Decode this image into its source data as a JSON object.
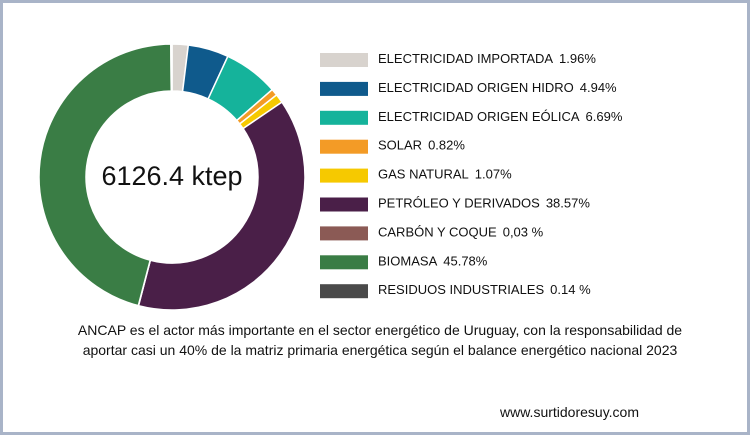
{
  "chart_data": {
    "type": "pie",
    "donut": true,
    "center_label": "6126.4 ktep",
    "categories": [
      "ELECTRICIDAD IMPORTADA",
      "ELECTRICIDAD ORIGEN HIDRO",
      "ELECTRICIDAD ORIGEN EÓLICA",
      "SOLAR",
      "GAS NATURAL",
      "PETRÓLEO Y DERIVADOS",
      "CARBÓN Y COQUE",
      "BIOMASA",
      "RESIDUOS INDUSTRIALES"
    ],
    "values": [
      1.96,
      4.94,
      6.69,
      0.82,
      1.07,
      38.57,
      0.03,
      45.78,
      0.14
    ],
    "value_labels": [
      "1.96%",
      "4.94%",
      "6.69%",
      "0.82%",
      "1.07%",
      "38.57%",
      "0,03 %",
      "45.78%",
      "0.14 %"
    ],
    "colors": [
      "#d8d3ce",
      "#0f5a8c",
      "#15b39b",
      "#f39b26",
      "#f6c900",
      "#4a1f48",
      "#8b5a55",
      "#3a7d45",
      "#4a4a4a"
    ],
    "caption": "ANCAP es el actor más importante en el sector energético de Uruguay, con la responsabilidad de aportar casi un 40% de la matriz primaria energética según el balance energético nacional 2023",
    "source": "www.surtidoresuy.com"
  }
}
